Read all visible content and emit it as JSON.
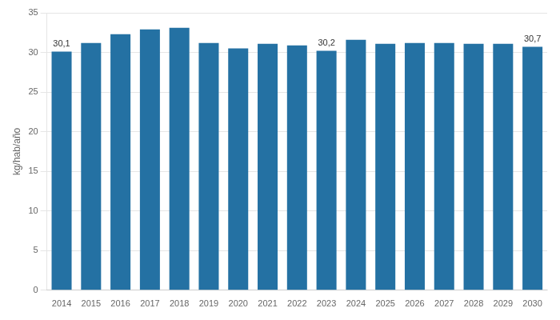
{
  "chart_data": {
    "type": "bar",
    "categories": [
      "2014",
      "2015",
      "2016",
      "2017",
      "2018",
      "2019",
      "2020",
      "2021",
      "2022",
      "2023",
      "2024",
      "2025",
      "2026",
      "2027",
      "2028",
      "2029",
      "2030"
    ],
    "values": [
      30.1,
      31.2,
      32.3,
      32.9,
      33.1,
      31.2,
      30.5,
      31.1,
      30.9,
      30.2,
      31.6,
      31.1,
      31.2,
      31.2,
      31.1,
      31.1,
      30.7
    ],
    "value_labels": [
      "30,1",
      null,
      null,
      null,
      null,
      null,
      null,
      null,
      null,
      "30,2",
      null,
      null,
      null,
      null,
      null,
      null,
      "30,7"
    ],
    "data_labels": true,
    "color": "#2471A3",
    "y_label": "kg/hab/año",
    "ylim": [
      0,
      35
    ],
    "yticks": [
      0,
      5,
      10,
      15,
      20,
      25,
      30,
      35
    ],
    "grid": true
  }
}
